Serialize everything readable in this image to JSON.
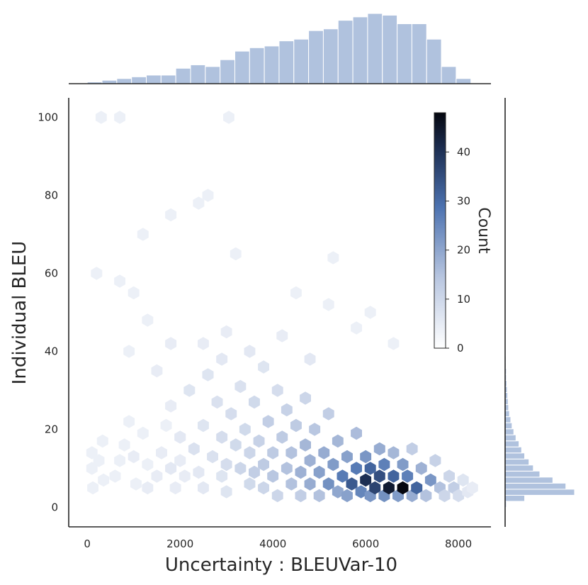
{
  "chart_data": {
    "type": "heatmap",
    "subtype": "hexbin-jointplot",
    "xlabel": "Uncertainty : BLEUVar-10",
    "ylabel": "Individual BLEU",
    "xlim": [
      -400,
      8700
    ],
    "ylim": [
      -5,
      105
    ],
    "xticks": [
      0,
      2000,
      4000,
      6000,
      8000
    ],
    "yticks": [
      0,
      20,
      40,
      60,
      80,
      100
    ],
    "colorbar": {
      "label": "Count",
      "range": [
        0,
        48
      ],
      "ticks": [
        0,
        10,
        20,
        30,
        40
      ]
    },
    "colors": {
      "hist": "#b0c2de",
      "hex_max": "#05070f",
      "hex_mid": "#4c72b0",
      "axis": "#262626"
    },
    "x_marginal_hist": {
      "bin_edges_start": 0,
      "bin_width": 318,
      "counts": [
        1,
        2,
        3,
        4,
        5,
        5,
        9,
        11,
        10,
        14,
        19,
        21,
        22,
        25,
        26,
        31,
        32,
        37,
        39,
        41,
        40,
        35,
        35,
        26,
        10,
        3
      ]
    },
    "y_marginal_hist": {
      "bin_edges_start": 0,
      "bin_width": 1.55,
      "counts": [
        3,
        45,
        160,
        140,
        110,
        80,
        65,
        55,
        45,
        38,
        32,
        25,
        20,
        16,
        13,
        10,
        8,
        7,
        6,
        5,
        4,
        3,
        3,
        2,
        2
      ]
    },
    "hexbin_points": [
      [
        100,
        10,
        1
      ],
      [
        100,
        14,
        1
      ],
      [
        120,
        5,
        1
      ],
      [
        250,
        12,
        1
      ],
      [
        330,
        17,
        1
      ],
      [
        350,
        7,
        1
      ],
      [
        600,
        8,
        1
      ],
      [
        700,
        12,
        1
      ],
      [
        800,
        16,
        1
      ],
      [
        900,
        22,
        1
      ],
      [
        1000,
        13,
        2
      ],
      [
        1050,
        6,
        1
      ],
      [
        1200,
        19,
        1
      ],
      [
        1300,
        11,
        1
      ],
      [
        1300,
        5,
        2
      ],
      [
        1500,
        8,
        2
      ],
      [
        1600,
        14,
        2
      ],
      [
        1700,
        21,
        1
      ],
      [
        1800,
        10,
        3
      ],
      [
        1800,
        26,
        2
      ],
      [
        1900,
        5,
        2
      ],
      [
        2000,
        18,
        3
      ],
      [
        2000,
        12,
        2
      ],
      [
        2100,
        8,
        2
      ],
      [
        2200,
        30,
        4
      ],
      [
        2300,
        15,
        5
      ],
      [
        2400,
        9,
        3
      ],
      [
        2500,
        21,
        4
      ],
      [
        2500,
        5,
        3
      ],
      [
        2600,
        34,
        4
      ],
      [
        2700,
        13,
        5
      ],
      [
        2800,
        27,
        5
      ],
      [
        2900,
        18,
        6
      ],
      [
        2900,
        8,
        4
      ],
      [
        3000,
        11,
        6
      ],
      [
        3000,
        4,
        4
      ],
      [
        3100,
        24,
        6
      ],
      [
        3200,
        16,
        7
      ],
      [
        3300,
        10,
        8
      ],
      [
        3300,
        31,
        5
      ],
      [
        3400,
        20,
        7
      ],
      [
        3500,
        6,
        7
      ],
      [
        3500,
        14,
        8
      ],
      [
        3600,
        9,
        10
      ],
      [
        3600,
        27,
        7
      ],
      [
        3700,
        17,
        9
      ],
      [
        3800,
        11,
        11
      ],
      [
        3800,
        5,
        8
      ],
      [
        3900,
        22,
        10
      ],
      [
        4000,
        8,
        12
      ],
      [
        4000,
        14,
        11
      ],
      [
        4100,
        3,
        8
      ],
      [
        4100,
        30,
        6
      ],
      [
        4200,
        18,
        11
      ],
      [
        4300,
        10,
        13
      ],
      [
        4300,
        25,
        9
      ],
      [
        4400,
        6,
        13
      ],
      [
        4400,
        14,
        13
      ],
      [
        4500,
        21,
        11
      ],
      [
        4600,
        9,
        16
      ],
      [
        4600,
        3,
        10
      ],
      [
        4700,
        16,
        15
      ],
      [
        4700,
        28,
        8
      ],
      [
        4800,
        6,
        17
      ],
      [
        4800,
        12,
        16
      ],
      [
        4900,
        20,
        12
      ],
      [
        5000,
        9,
        19
      ],
      [
        5000,
        3,
        13
      ],
      [
        5100,
        14,
        17
      ],
      [
        5200,
        6,
        22
      ],
      [
        5200,
        24,
        10
      ],
      [
        5300,
        11,
        20
      ],
      [
        5400,
        4,
        18
      ],
      [
        5400,
        17,
        15
      ],
      [
        5500,
        8,
        26
      ],
      [
        5600,
        3,
        19
      ],
      [
        5600,
        13,
        19
      ],
      [
        5700,
        6,
        32
      ],
      [
        5800,
        10,
        26
      ],
      [
        5800,
        19,
        14
      ],
      [
        5900,
        4,
        24
      ],
      [
        6000,
        7,
        40
      ],
      [
        6000,
        13,
        21
      ],
      [
        6100,
        3,
        21
      ],
      [
        6100,
        10,
        30
      ],
      [
        6200,
        5,
        36
      ],
      [
        6300,
        8,
        34
      ],
      [
        6300,
        15,
        17
      ],
      [
        6400,
        3,
        22
      ],
      [
        6400,
        11,
        25
      ],
      [
        6500,
        5,
        44
      ],
      [
        6600,
        8,
        30
      ],
      [
        6600,
        14,
        15
      ],
      [
        6700,
        3,
        20
      ],
      [
        6800,
        5,
        48
      ],
      [
        6800,
        11,
        20
      ],
      [
        6900,
        8,
        25
      ],
      [
        7000,
        3,
        17
      ],
      [
        7000,
        15,
        10
      ],
      [
        7100,
        5,
        30
      ],
      [
        7200,
        10,
        16
      ],
      [
        7300,
        3,
        13
      ],
      [
        7400,
        7,
        21
      ],
      [
        7500,
        12,
        9
      ],
      [
        7600,
        5,
        13
      ],
      [
        7700,
        3,
        8
      ],
      [
        7800,
        8,
        8
      ],
      [
        7900,
        5,
        10
      ],
      [
        8000,
        3,
        6
      ],
      [
        8100,
        7,
        4
      ],
      [
        8200,
        4,
        3
      ],
      [
        8300,
        5,
        2
      ],
      [
        3000,
        45,
        2
      ],
      [
        3500,
        40,
        3
      ],
      [
        4200,
        44,
        2
      ],
      [
        2500,
        42,
        2
      ],
      [
        1000,
        55,
        1
      ],
      [
        1300,
        48,
        1
      ],
      [
        5200,
        52,
        1
      ],
      [
        4800,
        38,
        3
      ],
      [
        3800,
        36,
        4
      ],
      [
        2900,
        38,
        3
      ],
      [
        1800,
        42,
        2
      ],
      [
        200,
        60,
        1
      ],
      [
        700,
        58,
        1
      ],
      [
        1800,
        75,
        1
      ],
      [
        2600,
        80,
        1
      ],
      [
        3200,
        65,
        1
      ],
      [
        5300,
        64,
        1
      ],
      [
        6100,
        50,
        1
      ],
      [
        300,
        100,
        1
      ],
      [
        700,
        100,
        1
      ],
      [
        3050,
        100,
        1
      ],
      [
        1200,
        70,
        1
      ],
      [
        2400,
        78,
        1
      ],
      [
        4500,
        55,
        1
      ],
      [
        6600,
        42,
        1
      ],
      [
        5800,
        46,
        1
      ],
      [
        1500,
        35,
        2
      ],
      [
        900,
        40,
        1
      ]
    ]
  }
}
